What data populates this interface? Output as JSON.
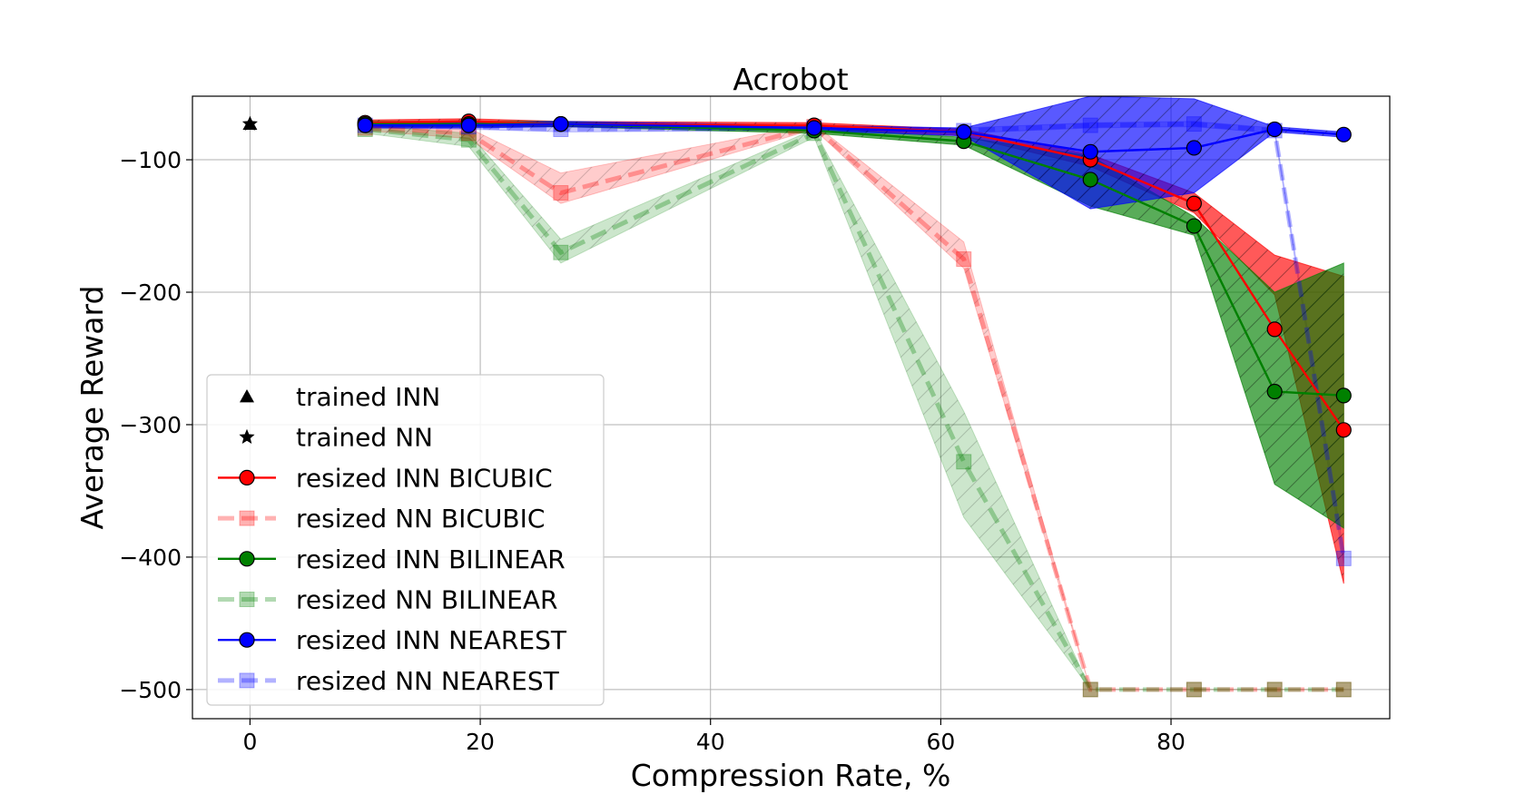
{
  "chart_data": {
    "type": "line",
    "title": "Acrobot",
    "xlabel": "Compression Rate, %",
    "ylabel": "Average Reward",
    "xlim": [
      -5,
      99
    ],
    "ylim": [
      -522,
      -52
    ],
    "xticks": [
      0,
      20,
      40,
      60,
      80
    ],
    "yticks": [
      -100,
      -200,
      -300,
      -400,
      -500
    ],
    "xtick_labels": [
      "0",
      "20",
      "40",
      "60",
      "80"
    ],
    "ytick_labels": [
      "−100",
      "−200",
      "−300",
      "−400",
      "−500"
    ],
    "grid": true,
    "legend_position": "lower-left",
    "trained": [
      {
        "name": "trained INN",
        "marker": "triangle",
        "x": 0,
        "y": -73,
        "color": "#000000"
      },
      {
        "name": "trained NN",
        "marker": "star",
        "x": 0,
        "y": -73,
        "color": "#000000"
      }
    ],
    "series": [
      {
        "name": "resized NN BICUBIC",
        "color": "#ff0000",
        "style": "dashed",
        "marker": "square",
        "faded": true,
        "x": [
          10,
          19,
          27,
          49,
          62,
          73,
          82,
          89,
          95
        ],
        "y": [
          -76,
          -80,
          -125,
          -75,
          -175,
          -500,
          -500,
          -500,
          -500
        ],
        "lower": [
          -78,
          -84,
          -133,
          -77,
          -182,
          -500,
          -500,
          -500,
          -500
        ],
        "upper": [
          -74,
          -76,
          -110,
          -73,
          -162,
          -500,
          -500,
          -500,
          -500
        ]
      },
      {
        "name": "resized NN BILINEAR",
        "color": "#008000",
        "style": "dashed",
        "marker": "square",
        "faded": true,
        "x": [
          10,
          19,
          27,
          49,
          62,
          73,
          82,
          89,
          95
        ],
        "y": [
          -77,
          -85,
          -170,
          -80,
          -328,
          -500,
          -500,
          -500,
          -500
        ],
        "lower": [
          -80,
          -90,
          -178,
          -83,
          -370,
          -500,
          -500,
          -500,
          -500
        ],
        "upper": [
          -74,
          -80,
          -160,
          -77,
          -290,
          -500,
          -500,
          -500,
          -500
        ]
      },
      {
        "name": "resized NN NEAREST",
        "color": "#0000ff",
        "style": "dashed",
        "marker": "square",
        "faded": true,
        "x": [
          10,
          19,
          27,
          49,
          62,
          73,
          82,
          89,
          95
        ],
        "y": [
          -74,
          -75,
          -77,
          -76,
          -78,
          -74,
          -73,
          -78,
          -401
        ],
        "lower": [
          -76,
          -77,
          -79,
          -78,
          -80,
          -76,
          -75,
          -80,
          -405
        ],
        "upper": [
          -72,
          -73,
          -75,
          -74,
          -76,
          -72,
          -71,
          -76,
          -395
        ]
      },
      {
        "name": "resized INN BICUBIC",
        "color": "#ff0000",
        "style": "solid",
        "marker": "circle",
        "faded": false,
        "x": [
          10,
          19,
          27,
          49,
          62,
          73,
          82,
          89,
          95
        ],
        "y": [
          -72,
          -71,
          -73,
          -74,
          -79,
          -100,
          -133,
          -228,
          -304
        ],
        "lower": [
          -74,
          -73,
          -75,
          -76,
          -82,
          -105,
          -140,
          -202,
          -420
        ],
        "upper": [
          -70,
          -69,
          -71,
          -72,
          -77,
          -96,
          -125,
          -172,
          -188
        ]
      },
      {
        "name": "resized INN BILINEAR",
        "color": "#008000",
        "style": "solid",
        "marker": "circle",
        "faded": false,
        "x": [
          10,
          19,
          27,
          49,
          62,
          73,
          82,
          89,
          95
        ],
        "y": [
          -73,
          -73,
          -73,
          -78,
          -86,
          -115,
          -150,
          -275,
          -278
        ],
        "lower": [
          -75,
          -75,
          -75,
          -80,
          -89,
          -135,
          -157,
          -345,
          -378
        ],
        "upper": [
          -71,
          -71,
          -71,
          -76,
          -83,
          -97,
          -143,
          -200,
          -178
        ]
      },
      {
        "name": "resized INN NEAREST",
        "color": "#0000ff",
        "style": "solid",
        "marker": "circle",
        "faded": false,
        "x": [
          10,
          19,
          27,
          49,
          62,
          73,
          82,
          89,
          95
        ],
        "y": [
          -74,
          -74,
          -73,
          -76,
          -79,
          -94,
          -91,
          -77,
          -81
        ],
        "lower": [
          -76,
          -76,
          -75,
          -78,
          -82,
          -137,
          -125,
          -79,
          -83
        ],
        "upper": [
          -72,
          -72,
          -71,
          -74,
          -76,
          -52,
          -54,
          -75,
          -79
        ]
      }
    ],
    "legend_order": [
      "trained INN",
      "trained NN",
      "resized INN BICUBIC",
      "resized NN BICUBIC",
      "resized INN BILINEAR",
      "resized NN BILINEAR",
      "resized INN NEAREST",
      "resized NN NEAREST"
    ]
  }
}
